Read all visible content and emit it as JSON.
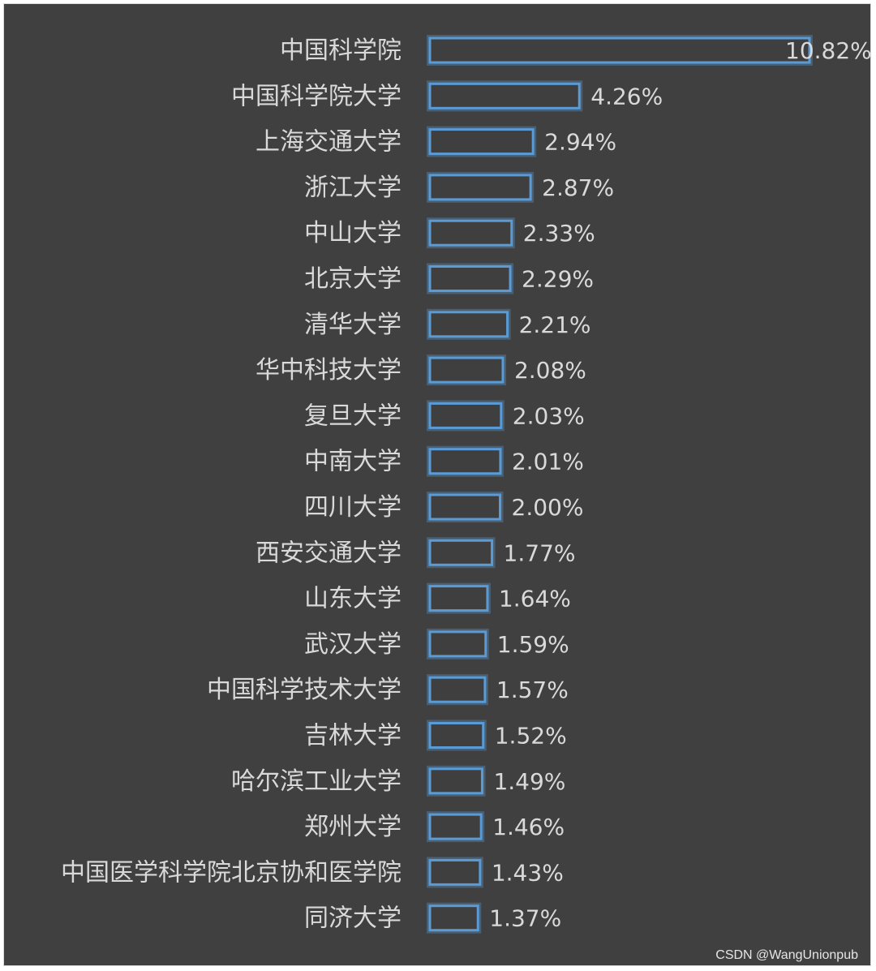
{
  "chart_data": {
    "type": "bar",
    "orientation": "horizontal",
    "categories": [
      "中国科学院",
      "中国科学院大学",
      "上海交通大学",
      "浙江大学",
      "中山大学",
      "北京大学",
      "清华大学",
      "华中科技大学",
      "复旦大学",
      "中南大学",
      "四川大学",
      "西安交通大学",
      "山东大学",
      "武汉大学",
      "中国科学技术大学",
      "吉林大学",
      "哈尔滨工业大学",
      "郑州大学",
      "中国医学科学院北京协和医学院",
      "同济大学"
    ],
    "values": [
      10.82,
      4.26,
      2.94,
      2.87,
      2.33,
      2.29,
      2.21,
      2.08,
      2.03,
      2.01,
      2.0,
      1.77,
      1.64,
      1.59,
      1.57,
      1.52,
      1.49,
      1.46,
      1.43,
      1.37
    ],
    "value_labels": [
      "10.82%",
      "4.26%",
      "2.94%",
      "2.87%",
      "2.33%",
      "2.29%",
      "2.21%",
      "2.08%",
      "2.03%",
      "2.01%",
      "2.00%",
      "1.77%",
      "1.64%",
      "1.59%",
      "1.57%",
      "1.52%",
      "1.49%",
      "1.46%",
      "1.43%",
      "1.37%"
    ],
    "title": "",
    "xlabel": "",
    "ylabel": "",
    "xlim": [
      0,
      10.82
    ],
    "grid": false,
    "legend": "none",
    "colors": {
      "background": "#404040",
      "bar_outline": "#5b9bd5",
      "text": "#d9d9d9"
    }
  },
  "watermark": "CSDN @WangUnionpub"
}
